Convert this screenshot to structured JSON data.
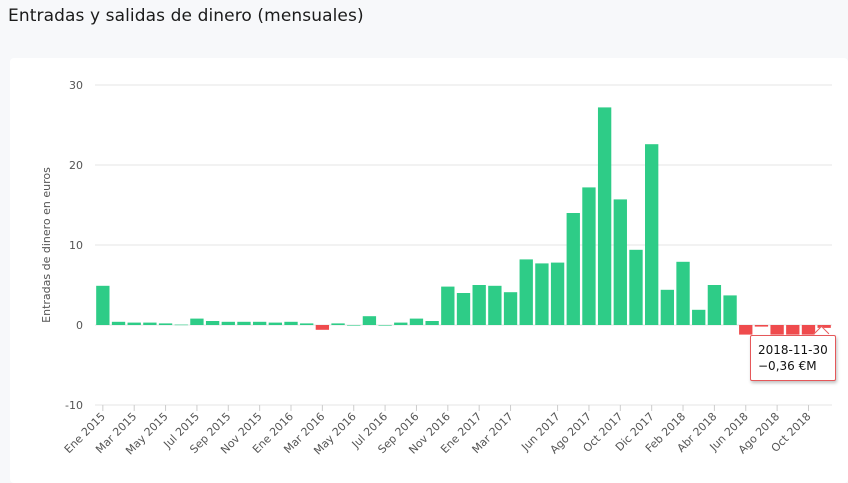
{
  "page": {
    "title": "Entradas y salidas de dinero (mensuales)"
  },
  "colors": {
    "positive": "#2ecc87",
    "negative": "#ef4b4d",
    "grid": "#e6e6e6",
    "axis_text": "#555555"
  },
  "tooltip": {
    "date": "2018-11-30",
    "value": "−0,36 €M"
  },
  "chart_data": {
    "type": "bar",
    "title": "Entradas y salidas de dinero (mensuales)",
    "ylabel": "Entradas de dinero en euros",
    "xlabel": "",
    "ylim": [
      -10,
      30
    ],
    "yticks": [
      30,
      20,
      10,
      0,
      -10
    ],
    "grid": true,
    "legend": "none",
    "categories": [
      "Ene 2015",
      "Feb 2015",
      "Mar 2015",
      "Abr 2015",
      "May 2015",
      "Jun 2015",
      "Jul 2015",
      "Ago 2015",
      "Sep 2015",
      "Oct 2015",
      "Nov 2015",
      "Dic 2015",
      "Ene 2016",
      "Feb 2016",
      "Mar 2016",
      "Abr 2016",
      "May 2016",
      "Jun 2016",
      "Jul 2016",
      "Ago 2016",
      "Sep 2016",
      "Oct 2016",
      "Nov 2016",
      "Dic 2016",
      "Ene 2017",
      "Feb 2017",
      "Mar 2017",
      "Abr 2017",
      "May 2017",
      "Jun 2017",
      "Jul 2017",
      "Ago 2017",
      "Sep 2017",
      "Oct 2017",
      "Nov 2017",
      "Dic 2017",
      "Ene 2018",
      "Feb 2018",
      "Mar 2018",
      "Abr 2018",
      "May 2018",
      "Jun 2018",
      "Jul 2018",
      "Ago 2018",
      "Sep 2018",
      "Oct 2018",
      "Nov 2018"
    ],
    "tick_labels": [
      "Ene 2015",
      "Mar 2015",
      "May 2015",
      "Jul 2015",
      "Sep 2015",
      "Nov 2015",
      "Ene 2016",
      "Mar 2016",
      "May 2016",
      "Jul 2016",
      "Sep 2016",
      "Nov 2016",
      "Ene 2017",
      "Mar 2017",
      "Jun 2017",
      "Ago 2017",
      "Oct 2017",
      "Dic 2017",
      "Feb 2018",
      "Abr 2018",
      "Jun 2018",
      "Ago 2018",
      "Oct 2018"
    ],
    "values": [
      4.9,
      0.4,
      0.3,
      0.3,
      0.2,
      0.05,
      0.8,
      0.5,
      0.4,
      0.4,
      0.4,
      0.3,
      0.4,
      0.2,
      -0.6,
      0.2,
      0.0,
      1.1,
      0.0,
      0.3,
      0.8,
      0.5,
      4.8,
      4.0,
      5.0,
      4.9,
      4.1,
      8.2,
      7.7,
      7.8,
      14.0,
      17.2,
      27.2,
      15.7,
      9.4,
      22.6,
      4.4,
      7.9,
      1.9,
      5.0,
      3.7,
      -1.2,
      -0.2,
      -1.2,
      -1.2,
      -1.2,
      -0.36
    ]
  }
}
